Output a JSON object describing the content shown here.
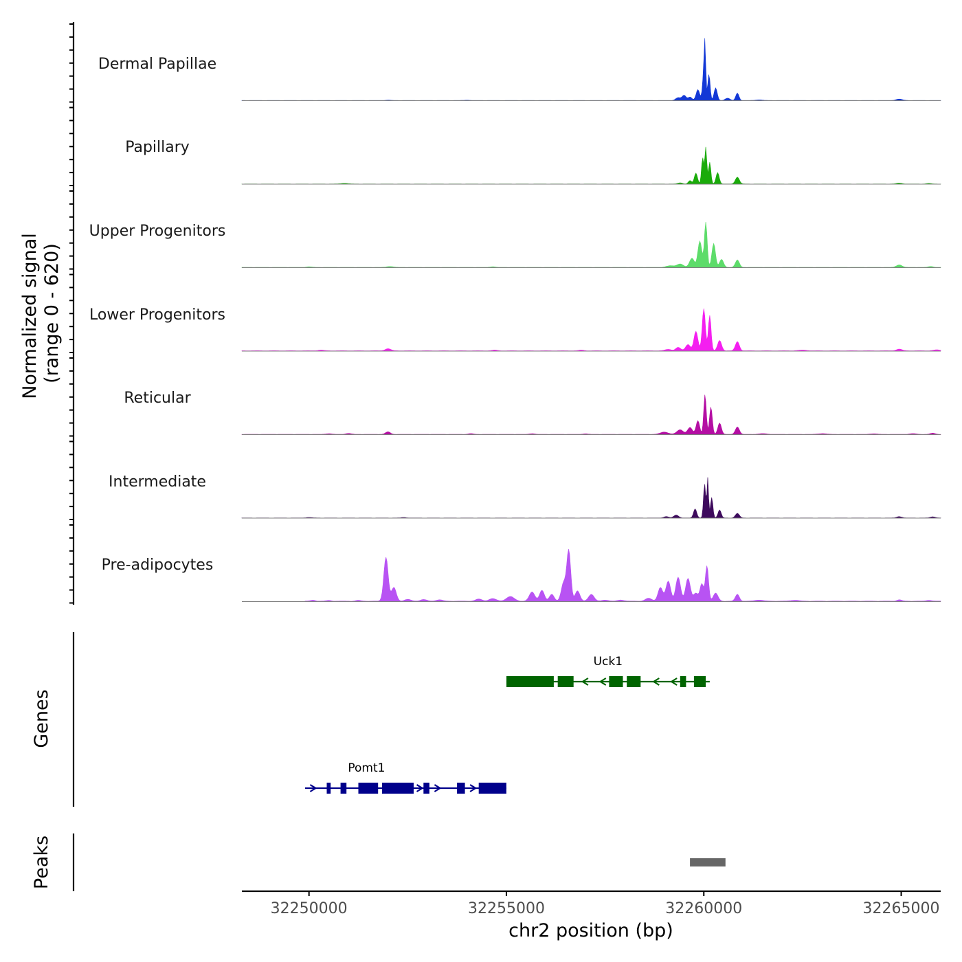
{
  "chart_data": {
    "type": "area",
    "title": "",
    "xlabel": "chr2 position (bp)",
    "ylabel_line1": "Normalized signal",
    "ylabel_line2": "(range 0 - 620)",
    "xlim": [
      32248300,
      32266000
    ],
    "ylim": [
      0,
      620
    ],
    "x_ticks": [
      32250000,
      32255000,
      32260000,
      32265000
    ],
    "x_tick_labels": [
      "32250000",
      "32255000",
      "32260000",
      "32265000"
    ],
    "coverage_tracks": [
      {
        "name": "Dermal Papillae",
        "color": "#1338d6",
        "baseline": 2,
        "peaks": [
          [
            32252000,
            3,
            60
          ],
          [
            32254000,
            3,
            60
          ],
          [
            32259350,
            25,
            60
          ],
          [
            32259500,
            45,
            50
          ],
          [
            32259650,
            30,
            50
          ],
          [
            32259850,
            95,
            45
          ],
          [
            32260000,
            240,
            32
          ],
          [
            32260030,
            380,
            20
          ],
          [
            32260130,
            230,
            30
          ],
          [
            32260300,
            110,
            40
          ],
          [
            32260600,
            20,
            60
          ],
          [
            32260850,
            65,
            40
          ],
          [
            32261400,
            6,
            80
          ],
          [
            32264950,
            12,
            80
          ]
        ]
      },
      {
        "name": "Papillary",
        "color": "#1aab0a",
        "baseline": 2,
        "peaks": [
          [
            32250900,
            6,
            90
          ],
          [
            32259400,
            10,
            60
          ],
          [
            32259650,
            30,
            40
          ],
          [
            32259800,
            95,
            40
          ],
          [
            32259970,
            230,
            28
          ],
          [
            32260050,
            320,
            25
          ],
          [
            32260150,
            190,
            30
          ],
          [
            32260350,
            100,
            40
          ],
          [
            32260850,
            60,
            50
          ],
          [
            32264950,
            8,
            70
          ],
          [
            32265700,
            5,
            60
          ]
        ]
      },
      {
        "name": "Upper Progenitors",
        "color": "#5ddc6a",
        "baseline": 3,
        "peaks": [
          [
            32250000,
            5,
            70
          ],
          [
            32252050,
            8,
            80
          ],
          [
            32254650,
            6,
            60
          ],
          [
            32259150,
            14,
            100
          ],
          [
            32259400,
            30,
            80
          ],
          [
            32259700,
            80,
            60
          ],
          [
            32259900,
            230,
            50
          ],
          [
            32260050,
            395,
            35
          ],
          [
            32260250,
            210,
            45
          ],
          [
            32260450,
            70,
            50
          ],
          [
            32260850,
            65,
            50
          ],
          [
            32264950,
            22,
            70
          ],
          [
            32265750,
            8,
            60
          ]
        ]
      },
      {
        "name": "Lower Progenitors",
        "color": "#f41ff0",
        "baseline": 4,
        "peaks": [
          [
            32250300,
            6,
            70
          ],
          [
            32252000,
            18,
            70
          ],
          [
            32254700,
            6,
            60
          ],
          [
            32256900,
            6,
            60
          ],
          [
            32259100,
            12,
            80
          ],
          [
            32259350,
            30,
            60
          ],
          [
            32259600,
            55,
            60
          ],
          [
            32259800,
            170,
            50
          ],
          [
            32260000,
            370,
            40
          ],
          [
            32260150,
            310,
            35
          ],
          [
            32260400,
            90,
            50
          ],
          [
            32260850,
            80,
            50
          ],
          [
            32262500,
            6,
            100
          ],
          [
            32264950,
            14,
            70
          ],
          [
            32265900,
            8,
            80
          ]
        ]
      },
      {
        "name": "Reticular",
        "color": "#b40ea3",
        "baseline": 3,
        "peaks": [
          [
            32250500,
            6,
            70
          ],
          [
            32251000,
            8,
            70
          ],
          [
            32252000,
            22,
            60
          ],
          [
            32254100,
            6,
            60
          ],
          [
            32255650,
            6,
            60
          ],
          [
            32257000,
            5,
            60
          ],
          [
            32259000,
            20,
            100
          ],
          [
            32259400,
            40,
            80
          ],
          [
            32259650,
            60,
            60
          ],
          [
            32259850,
            120,
            45
          ],
          [
            32260030,
            350,
            32
          ],
          [
            32260180,
            240,
            35
          ],
          [
            32260400,
            100,
            45
          ],
          [
            32260850,
            65,
            50
          ],
          [
            32261500,
            6,
            100
          ],
          [
            32263000,
            6,
            100
          ],
          [
            32264300,
            5,
            80
          ],
          [
            32265300,
            6,
            80
          ],
          [
            32265800,
            10,
            60
          ]
        ]
      },
      {
        "name": "Intermediate",
        "color": "#3d0a5c",
        "baseline": 2,
        "peaks": [
          [
            32250000,
            4,
            70
          ],
          [
            32252400,
            4,
            60
          ],
          [
            32259050,
            12,
            60
          ],
          [
            32259300,
            25,
            60
          ],
          [
            32259780,
            80,
            40
          ],
          [
            32260020,
            300,
            28
          ],
          [
            32260100,
            350,
            20
          ],
          [
            32260200,
            180,
            30
          ],
          [
            32260400,
            70,
            40
          ],
          [
            32260850,
            40,
            50
          ],
          [
            32264950,
            12,
            60
          ],
          [
            32265800,
            10,
            60
          ]
        ]
      },
      {
        "name": "Pre-adipocytes",
        "color": "#b853f3",
        "baseline": 5,
        "peaks": [
          [
            32250100,
            8,
            60
          ],
          [
            32250500,
            6,
            60
          ],
          [
            32251250,
            7,
            60
          ],
          [
            32251950,
            385,
            55
          ],
          [
            32252150,
            120,
            60
          ],
          [
            32252500,
            15,
            80
          ],
          [
            32252900,
            14,
            80
          ],
          [
            32253300,
            12,
            80
          ],
          [
            32254300,
            18,
            80
          ],
          [
            32254650,
            22,
            90
          ],
          [
            32255100,
            40,
            100
          ],
          [
            32255650,
            80,
            70
          ],
          [
            32255900,
            95,
            60
          ],
          [
            32256150,
            60,
            60
          ],
          [
            32256450,
            160,
            60
          ],
          [
            32256580,
            440,
            50
          ],
          [
            32256800,
            90,
            60
          ],
          [
            32257150,
            60,
            70
          ],
          [
            32257500,
            10,
            80
          ],
          [
            32257900,
            10,
            80
          ],
          [
            32258600,
            25,
            80
          ],
          [
            32258900,
            120,
            60
          ],
          [
            32259100,
            175,
            60
          ],
          [
            32259350,
            210,
            60
          ],
          [
            32259600,
            200,
            60
          ],
          [
            32259800,
            70,
            60
          ],
          [
            32259950,
            150,
            45
          ],
          [
            32260080,
            310,
            40
          ],
          [
            32260300,
            70,
            60
          ],
          [
            32260850,
            60,
            50
          ],
          [
            32261400,
            10,
            100
          ],
          [
            32262300,
            8,
            100
          ],
          [
            32264950,
            12,
            60
          ],
          [
            32265700,
            8,
            60
          ]
        ]
      }
    ],
    "gene_track": {
      "title": "Genes",
      "genes": [
        {
          "name": "Uck1",
          "strand": "-",
          "color": "#006400",
          "start": 32255000,
          "end": 32260150,
          "exons": [
            [
              32255000,
              32256200
            ],
            [
              32256300,
              32256700
            ],
            [
              32257600,
              32257950
            ],
            [
              32258050,
              32258400
            ],
            [
              32259400,
              32259550
            ],
            [
              32259750,
              32260050
            ]
          ]
        },
        {
          "name": "Pomt1",
          "strand": "+",
          "color": "#00008b",
          "start": 32249900,
          "end": 32255000,
          "exons": [
            [
              32250450,
              32250550
            ],
            [
              32250800,
              32250950
            ],
            [
              32251250,
              32251750
            ],
            [
              32251850,
              32252650
            ],
            [
              32252900,
              32253050
            ],
            [
              32253750,
              32253950
            ],
            [
              32254300,
              32255000
            ]
          ]
        }
      ]
    },
    "peak_track": {
      "title": "Peaks",
      "color": "#666666",
      "peaks": [
        [
          32259650,
          32260550
        ]
      ]
    }
  }
}
